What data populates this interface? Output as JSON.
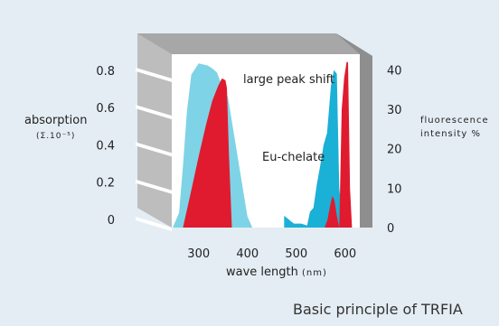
{
  "caption": "Basic principle of TRFIA",
  "colors": {
    "background": "#e4edf4",
    "frame": "#a7a7a7",
    "panel": "#ffffff",
    "absorption": "#7fd3e6",
    "fluorescence": "#1bb0d6",
    "eu_chelate": "#e01b2f"
  },
  "chart_data": {
    "type": "area",
    "title": "",
    "annotations": [
      "large peak shift",
      "Eu-chelate"
    ],
    "x_axis": {
      "label": "wave length",
      "unit_label": "(nm)",
      "ticks": [
        300,
        400,
        500,
        600
      ],
      "range": [
        245,
        630
      ]
    },
    "y_left": {
      "label": "absorption",
      "sublabel": "(Σ.10⁻⁵)",
      "ticks": [
        0,
        0.2,
        0.4,
        0.6,
        0.8
      ],
      "range": [
        0,
        0.93
      ]
    },
    "y_right": {
      "label": "fluorescence",
      "sublabel": "intensity %",
      "ticks": [
        0,
        10,
        20,
        30,
        40
      ],
      "range": [
        0,
        44
      ]
    },
    "series": [
      {
        "role": "absorption",
        "axis": "left",
        "color": "#7fd3e6",
        "x": [
          247,
          260,
          268,
          276,
          285,
          300,
          318,
          330,
          338,
          342,
          360,
          385,
          400,
          410
        ],
        "y": [
          0,
          0.08,
          0.33,
          0.62,
          0.82,
          0.88,
          0.87,
          0.85,
          0.83,
          0.8,
          0.7,
          0.3,
          0.06,
          0
        ]
      },
      {
        "role": "eu_chelate_absorption",
        "axis": "left",
        "color": "#e01b2f",
        "x": [
          268,
          285,
          300,
          315,
          328,
          340,
          348,
          355,
          358,
          362,
          368
        ],
        "y": [
          0,
          0.2,
          0.38,
          0.55,
          0.68,
          0.76,
          0.8,
          0.79,
          0.75,
          0.4,
          0
        ]
      },
      {
        "role": "fluorescence",
        "axis": "right",
        "color": "#1bb0d6",
        "x": [
          475,
          495,
          510,
          522,
          528,
          535,
          542,
          548,
          556,
          563,
          571,
          577,
          583,
          588,
          594,
          600,
          606,
          612
        ],
        "y": [
          3,
          1,
          1,
          0.5,
          4,
          5,
          11,
          15,
          21,
          24,
          36,
          40,
          39,
          10,
          2,
          0,
          4,
          4
        ]
      },
      {
        "role": "eu_chelate_emission",
        "axis": "right",
        "color": "#e01b2f",
        "x": [
          558,
          564,
          570,
          574,
          578,
          583,
          588,
          593,
          598,
          603,
          606,
          610,
          614
        ],
        "y": [
          0,
          2,
          6,
          8,
          7,
          3,
          0,
          30,
          38,
          42,
          42,
          10,
          0
        ]
      }
    ]
  }
}
